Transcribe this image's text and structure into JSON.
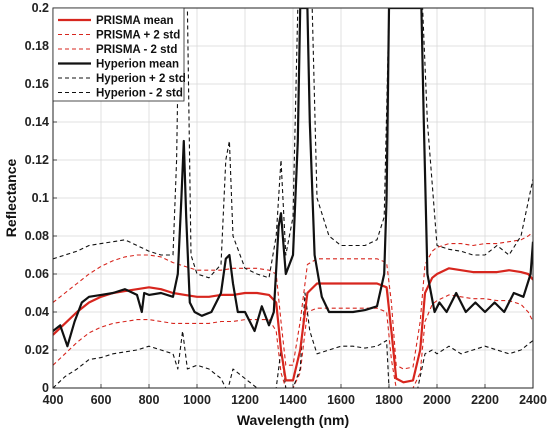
{
  "chart_data": {
    "type": "line",
    "title": "",
    "xlabel": "Wavelength (nm)",
    "ylabel": "Reflectance",
    "xlim": [
      400,
      2400
    ],
    "ylim": [
      0,
      0.2
    ],
    "xticks": [
      400,
      600,
      800,
      1000,
      1200,
      1400,
      1600,
      1800,
      2000,
      2200,
      2400
    ],
    "yticks": [
      0,
      0.02,
      0.04,
      0.06,
      0.08,
      0.1,
      0.12,
      0.14,
      0.16,
      0.18,
      0.2
    ],
    "ytick_labels": [
      "0",
      "0.02",
      "0.04",
      "0.06",
      "0.08",
      "0.1",
      "0.12",
      "0.14",
      "0.16",
      "0.18",
      "0.2"
    ],
    "grid": true,
    "legend_position": "top-left",
    "series": [
      {
        "name": "PRISMA  mean",
        "color": "#d7261e",
        "style": "solid",
        "x": [
          400,
          450,
          500,
          550,
          600,
          650,
          700,
          750,
          800,
          850,
          900,
          950,
          1000,
          1050,
          1100,
          1150,
          1200,
          1250,
          1300,
          1330,
          1350,
          1370,
          1400,
          1430,
          1460,
          1500,
          1550,
          1600,
          1650,
          1700,
          1750,
          1790,
          1810,
          1830,
          1860,
          1900,
          1930,
          1950,
          1980,
          2000,
          2050,
          2100,
          2150,
          2200,
          2250,
          2300,
          2350,
          2380,
          2400
        ],
        "y": [
          0.028,
          0.034,
          0.04,
          0.045,
          0.048,
          0.05,
          0.051,
          0.052,
          0.053,
          0.052,
          0.05,
          0.049,
          0.048,
          0.048,
          0.049,
          0.049,
          0.05,
          0.05,
          0.049,
          0.045,
          0.02,
          0.004,
          0.004,
          0.02,
          0.05,
          0.055,
          0.055,
          0.055,
          0.055,
          0.055,
          0.055,
          0.053,
          0.03,
          0.005,
          0.003,
          0.004,
          0.02,
          0.05,
          0.058,
          0.06,
          0.063,
          0.062,
          0.061,
          0.061,
          0.061,
          0.062,
          0.061,
          0.06,
          0.057
        ]
      },
      {
        "name": "PRISMA + 2 std",
        "color": "#d7261e",
        "style": "dashed",
        "x": [
          400,
          450,
          500,
          550,
          600,
          650,
          700,
          750,
          800,
          850,
          900,
          950,
          1000,
          1050,
          1100,
          1150,
          1200,
          1250,
          1300,
          1330,
          1350,
          1370,
          1400,
          1430,
          1460,
          1500,
          1550,
          1600,
          1650,
          1700,
          1750,
          1790,
          1810,
          1830,
          1860,
          1900,
          1930,
          1950,
          1980,
          2000,
          2050,
          2100,
          2150,
          2200,
          2250,
          2300,
          2350,
          2380,
          2400
        ],
        "y": [
          0.045,
          0.05,
          0.055,
          0.06,
          0.064,
          0.067,
          0.069,
          0.07,
          0.07,
          0.069,
          0.066,
          0.064,
          0.062,
          0.062,
          0.062,
          0.063,
          0.063,
          0.063,
          0.062,
          0.06,
          0.035,
          0.012,
          0.012,
          0.035,
          0.065,
          0.068,
          0.068,
          0.068,
          0.068,
          0.068,
          0.068,
          0.066,
          0.045,
          0.012,
          0.01,
          0.011,
          0.035,
          0.065,
          0.072,
          0.074,
          0.076,
          0.076,
          0.075,
          0.076,
          0.076,
          0.077,
          0.078,
          0.08,
          0.082
        ]
      },
      {
        "name": "PRISMA - 2 std",
        "color": "#d7261e",
        "style": "dashed",
        "x": [
          400,
          450,
          500,
          550,
          600,
          650,
          700,
          750,
          800,
          850,
          900,
          950,
          1000,
          1050,
          1100,
          1150,
          1200,
          1250,
          1300,
          1330,
          1350,
          1370,
          1400,
          1430,
          1460,
          1500,
          1550,
          1600,
          1650,
          1700,
          1750,
          1790,
          1810,
          1830,
          1860,
          1900,
          1930,
          1950,
          1980,
          2000,
          2050,
          2100,
          2150,
          2200,
          2250,
          2300,
          2350,
          2380,
          2400
        ],
        "y": [
          0.012,
          0.018,
          0.024,
          0.029,
          0.032,
          0.034,
          0.035,
          0.036,
          0.036,
          0.035,
          0.034,
          0.034,
          0.034,
          0.034,
          0.035,
          0.035,
          0.036,
          0.036,
          0.036,
          0.03,
          0.008,
          0.0,
          0.0,
          0.008,
          0.04,
          0.042,
          0.042,
          0.042,
          0.042,
          0.042,
          0.042,
          0.04,
          0.015,
          0.0,
          0.0,
          0.0,
          0.008,
          0.035,
          0.044,
          0.046,
          0.049,
          0.048,
          0.047,
          0.047,
          0.046,
          0.046,
          0.044,
          0.04,
          0.035
        ]
      },
      {
        "name": "Hyperion mean",
        "color": "#111111",
        "style": "solid",
        "x": [
          400,
          430,
          460,
          490,
          520,
          550,
          600,
          650,
          700,
          750,
          770,
          780,
          800,
          850,
          900,
          920,
          935,
          945,
          955,
          970,
          990,
          1020,
          1060,
          1100,
          1120,
          1135,
          1150,
          1170,
          1200,
          1240,
          1270,
          1300,
          1320,
          1340,
          1350,
          1370,
          1400,
          1420,
          1430,
          1440,
          1450,
          1460,
          1470,
          1490,
          1520,
          1550,
          1600,
          1650,
          1700,
          1750,
          1780,
          1790,
          1800,
          1805,
          1810,
          1900,
          1920,
          1930,
          1935,
          1945,
          1960,
          1990,
          2010,
          2040,
          2080,
          2120,
          2160,
          2200,
          2240,
          2280,
          2320,
          2360,
          2390,
          2400
        ],
        "y": [
          0.03,
          0.033,
          0.022,
          0.035,
          0.045,
          0.048,
          0.049,
          0.05,
          0.052,
          0.049,
          0.04,
          0.05,
          0.049,
          0.05,
          0.048,
          0.06,
          0.1,
          0.13,
          0.09,
          0.045,
          0.04,
          0.038,
          0.04,
          0.05,
          0.068,
          0.07,
          0.055,
          0.04,
          0.04,
          0.03,
          0.043,
          0.033,
          0.04,
          0.085,
          0.092,
          0.06,
          0.07,
          0.13,
          0.2,
          0.2,
          0.2,
          0.2,
          0.14,
          0.07,
          0.048,
          0.04,
          0.04,
          0.04,
          0.041,
          0.043,
          0.06,
          0.1,
          0.2,
          0.2,
          0.2,
          0.2,
          0.2,
          0.2,
          0.2,
          0.14,
          0.06,
          0.04,
          0.045,
          0.04,
          0.05,
          0.04,
          0.045,
          0.04,
          0.045,
          0.04,
          0.05,
          0.048,
          0.06,
          0.077
        ]
      },
      {
        "name": "Hyperion + 2 std",
        "color": "#111111",
        "style": "dashed",
        "x": [
          400,
          450,
          500,
          550,
          600,
          650,
          700,
          750,
          800,
          850,
          900,
          915,
          925,
          940,
          960,
          975,
          1000,
          1050,
          1100,
          1120,
          1135,
          1150,
          1200,
          1250,
          1300,
          1330,
          1350,
          1370,
          1400,
          1420,
          1440,
          1460,
          1480,
          1500,
          1550,
          1600,
          1650,
          1700,
          1750,
          1780,
          1800,
          1810,
          1900,
          1920,
          1940,
          1960,
          2000,
          2050,
          2100,
          2150,
          2200,
          2250,
          2300,
          2350,
          2400
        ],
        "y": [
          0.068,
          0.07,
          0.072,
          0.075,
          0.076,
          0.077,
          0.078,
          0.075,
          0.072,
          0.07,
          0.07,
          0.12,
          0.2,
          0.2,
          0.2,
          0.07,
          0.06,
          0.058,
          0.065,
          0.12,
          0.13,
          0.08,
          0.063,
          0.06,
          0.058,
          0.08,
          0.12,
          0.07,
          0.09,
          0.2,
          0.2,
          0.2,
          0.2,
          0.1,
          0.08,
          0.075,
          0.075,
          0.075,
          0.078,
          0.09,
          0.2,
          0.2,
          0.2,
          0.2,
          0.2,
          0.14,
          0.075,
          0.073,
          0.072,
          0.07,
          0.07,
          0.075,
          0.07,
          0.08,
          0.11
        ]
      },
      {
        "name": "Hyperion - 2 std",
        "color": "#111111",
        "style": "dashed",
        "x": [
          400,
          450,
          500,
          550,
          600,
          650,
          700,
          750,
          800,
          850,
          900,
          920,
          940,
          960,
          1000,
          1050,
          1100,
          1120,
          1130,
          1150,
          1200,
          1250,
          1300,
          1330,
          1350,
          1370,
          1400,
          1430,
          1450,
          1470,
          1500,
          1550,
          1600,
          1650,
          1700,
          1750,
          1790,
          1800,
          1810,
          1900,
          1920,
          1950,
          1980,
          2000,
          2050,
          2100,
          2150,
          2200,
          2250,
          2300,
          2350,
          2400
        ],
        "y": [
          0.0,
          0.006,
          0.01,
          0.015,
          0.016,
          0.018,
          0.019,
          0.02,
          0.022,
          0.02,
          0.018,
          0.01,
          0.03,
          0.01,
          0.012,
          0.01,
          0.005,
          0.0,
          0.0,
          0.01,
          0.005,
          0.0,
          0.0,
          0.0,
          0.02,
          0.0,
          0.0,
          0.01,
          0.05,
          0.03,
          0.018,
          0.02,
          0.022,
          0.022,
          0.021,
          0.022,
          0.025,
          0.0,
          0.0,
          0.0,
          0.0,
          0.018,
          0.02,
          0.018,
          0.022,
          0.018,
          0.02,
          0.022,
          0.02,
          0.018,
          0.02,
          0.025
        ]
      }
    ]
  }
}
